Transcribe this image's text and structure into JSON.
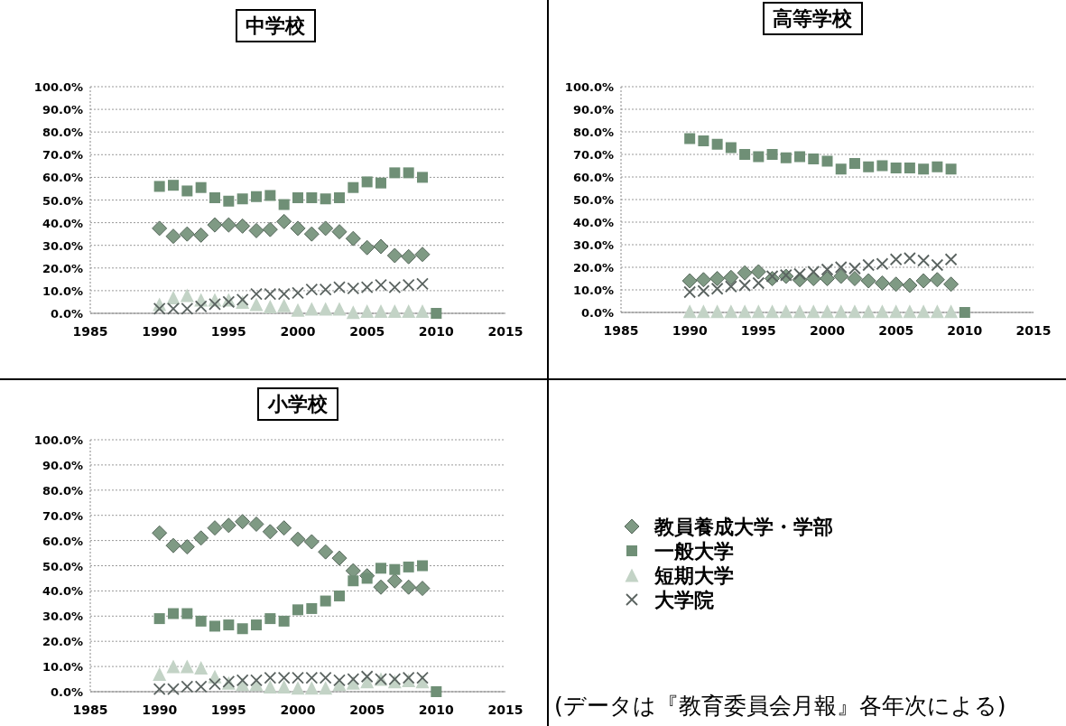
{
  "chart_data": [
    {
      "type": "scatter",
      "title": "中学校",
      "x": [
        1990,
        1991,
        1992,
        1993,
        1994,
        1995,
        1996,
        1997,
        1998,
        1999,
        2000,
        2001,
        2002,
        2003,
        2004,
        2005,
        2006,
        2007,
        2008,
        2009,
        2010
      ],
      "xlim": [
        1985,
        2015
      ],
      "xticks": [
        1985,
        1990,
        1995,
        2000,
        2005,
        2010,
        2015
      ],
      "ylim": [
        0,
        100
      ],
      "yticks": [
        {
          "value": 0,
          "label": "0.0%"
        },
        {
          "value": 10,
          "label": "10.0%"
        },
        {
          "value": 20,
          "label": "20.0%"
        },
        {
          "value": 30,
          "label": "30.0%"
        },
        {
          "value": 40,
          "label": "40.0%"
        },
        {
          "value": 50,
          "label": "50.0%"
        },
        {
          "value": 60,
          "label": "60.0%"
        },
        {
          "value": 70,
          "label": "70.0%"
        },
        {
          "value": 80,
          "label": "80.0%"
        },
        {
          "value": 90,
          "label": "90.0%"
        },
        {
          "value": 100,
          "label": "100.0%"
        }
      ],
      "grid": "y",
      "legend": "right",
      "series": [
        {
          "name": "教員養成大学・学部",
          "marker": "diamond",
          "color": "#7f9a84",
          "values": [
            37.5,
            34,
            35,
            34.5,
            39,
            39,
            38.5,
            36.5,
            37,
            40.5,
            37.5,
            35,
            37.5,
            36,
            33,
            29,
            29.5,
            25.5,
            25,
            26,
            null
          ]
        },
        {
          "name": "一般大学",
          "marker": "square",
          "color": "#6f8f76",
          "values": [
            56,
            56.5,
            54,
            55.5,
            51,
            49.5,
            50.5,
            51.5,
            52,
            48,
            51,
            51,
            50.5,
            51,
            55.5,
            58,
            57.5,
            62,
            62,
            60,
            0
          ]
        },
        {
          "name": "短期大学",
          "marker": "triangle",
          "color": "#c3d3c6",
          "values": [
            4,
            7,
            8,
            6,
            6,
            6,
            5,
            4,
            3,
            3.5,
            1.5,
            2,
            2,
            2,
            0.5,
            1,
            1,
            1,
            1,
            1,
            null
          ]
        },
        {
          "name": "大学院",
          "marker": "cross",
          "color": "#5a6360",
          "values": [
            2,
            2,
            2,
            3,
            4,
            5,
            6,
            8.5,
            8.5,
            8.5,
            9,
            10.5,
            10.5,
            11.5,
            11,
            11.5,
            12.5,
            11.5,
            12.5,
            13,
            null
          ]
        }
      ]
    },
    {
      "type": "scatter",
      "title": "高等学校",
      "x": [
        1990,
        1991,
        1992,
        1993,
        1994,
        1995,
        1996,
        1997,
        1998,
        1999,
        2000,
        2001,
        2002,
        2003,
        2004,
        2005,
        2006,
        2007,
        2008,
        2009,
        2010
      ],
      "xlim": [
        1985,
        2015
      ],
      "xticks": [
        1985,
        1990,
        1995,
        2000,
        2005,
        2010,
        2015
      ],
      "ylim": [
        0,
        100
      ],
      "yticks": [
        {
          "value": 0,
          "label": "0.0%"
        },
        {
          "value": 10,
          "label": "10.0%"
        },
        {
          "value": 20,
          "label": "20.0%"
        },
        {
          "value": 30,
          "label": "30.0%"
        },
        {
          "value": 40,
          "label": "40.0%"
        },
        {
          "value": 50,
          "label": "50.0%"
        },
        {
          "value": 60,
          "label": "60.0%"
        },
        {
          "value": 70,
          "label": "70.0%"
        },
        {
          "value": 80,
          "label": "80.0%"
        },
        {
          "value": 90,
          "label": "90.0%"
        },
        {
          "value": 100,
          "label": "100.0%"
        }
      ],
      "grid": "y",
      "series": [
        {
          "marker": "diamond",
          "color": "#7f9a84",
          "values": [
            14,
            14.5,
            15,
            15.5,
            17.5,
            18,
            15,
            16,
            14.5,
            15,
            15,
            16,
            15,
            14,
            13,
            12.5,
            12,
            14,
            14.5,
            12.5,
            null
          ]
        },
        {
          "marker": "square",
          "color": "#6f8f76",
          "values": [
            77,
            76,
            74.5,
            73,
            70,
            69,
            70,
            68.5,
            69,
            68,
            67,
            63.5,
            66,
            64.5,
            65,
            64,
            64,
            63.5,
            64.5,
            63.5,
            0
          ]
        },
        {
          "marker": "triangle",
          "color": "#c3d3c6",
          "values": [
            0.5,
            0.5,
            0.5,
            0.5,
            0.5,
            0.5,
            0.5,
            0.5,
            0.5,
            0.5,
            0.5,
            0.5,
            0.5,
            0.5,
            0.5,
            0.5,
            0.5,
            0.5,
            0.5,
            0.5,
            null
          ]
        },
        {
          "marker": "cross",
          "color": "#5a6360",
          "values": [
            9,
            9.5,
            10.5,
            11.5,
            12,
            13,
            16,
            16.5,
            17,
            18,
            19,
            20,
            19.5,
            21,
            21.5,
            23.5,
            24,
            23,
            21,
            23.5,
            null
          ]
        }
      ]
    },
    {
      "type": "scatter",
      "title": "小学校",
      "x": [
        1990,
        1991,
        1992,
        1993,
        1994,
        1995,
        1996,
        1997,
        1998,
        1999,
        2000,
        2001,
        2002,
        2003,
        2004,
        2005,
        2006,
        2007,
        2008,
        2009,
        2010
      ],
      "xlim": [
        1985,
        2015
      ],
      "xticks": [
        1985,
        1990,
        1995,
        2000,
        2005,
        2010,
        2015
      ],
      "ylim": [
        0,
        100
      ],
      "yticks": [
        {
          "value": 0,
          "label": "0.0%"
        },
        {
          "value": 10,
          "label": "10.0%"
        },
        {
          "value": 20,
          "label": "20.0%"
        },
        {
          "value": 30,
          "label": "30.0%"
        },
        {
          "value": 40,
          "label": "40.0%"
        },
        {
          "value": 50,
          "label": "50.0%"
        },
        {
          "value": 60,
          "label": "60.0%"
        },
        {
          "value": 70,
          "label": "70.0%"
        },
        {
          "value": 80,
          "label": "80.0%"
        },
        {
          "value": 90,
          "label": "90.0%"
        },
        {
          "value": 100,
          "label": "100.0%"
        }
      ],
      "grid": "y",
      "annotations": [
        "(データは『教育委員会月報』各年次による)"
      ],
      "series": [
        {
          "marker": "diamond",
          "color": "#7f9a84",
          "values": [
            63,
            58,
            57.5,
            61,
            65,
            66,
            67.5,
            66.5,
            63.5,
            65,
            60.5,
            59.5,
            55.5,
            53,
            48,
            46,
            41.5,
            44,
            41.5,
            41,
            null
          ]
        },
        {
          "marker": "square",
          "color": "#6f8f76",
          "values": [
            29,
            31,
            31,
            28,
            26,
            26.5,
            25,
            26.5,
            29,
            28,
            32.5,
            33,
            36,
            38,
            44,
            45,
            49,
            48.5,
            49.5,
            50,
            0
          ]
        },
        {
          "marker": "triangle",
          "color": "#c3d3c6",
          "values": [
            7,
            10,
            10,
            9.5,
            6,
            3.5,
            3,
            3,
            2,
            2,
            1.5,
            1.5,
            1.5,
            3,
            3.5,
            4,
            5,
            4,
            4.5,
            4,
            null
          ]
        },
        {
          "marker": "cross",
          "color": "#5a6360",
          "values": [
            1,
            1,
            2,
            2,
            3,
            4,
            4.5,
            4.5,
            5.5,
            5.5,
            5.5,
            5.5,
            5.5,
            4.5,
            5,
            6,
            5,
            5,
            5.5,
            5.5,
            null
          ]
        }
      ]
    }
  ]
}
